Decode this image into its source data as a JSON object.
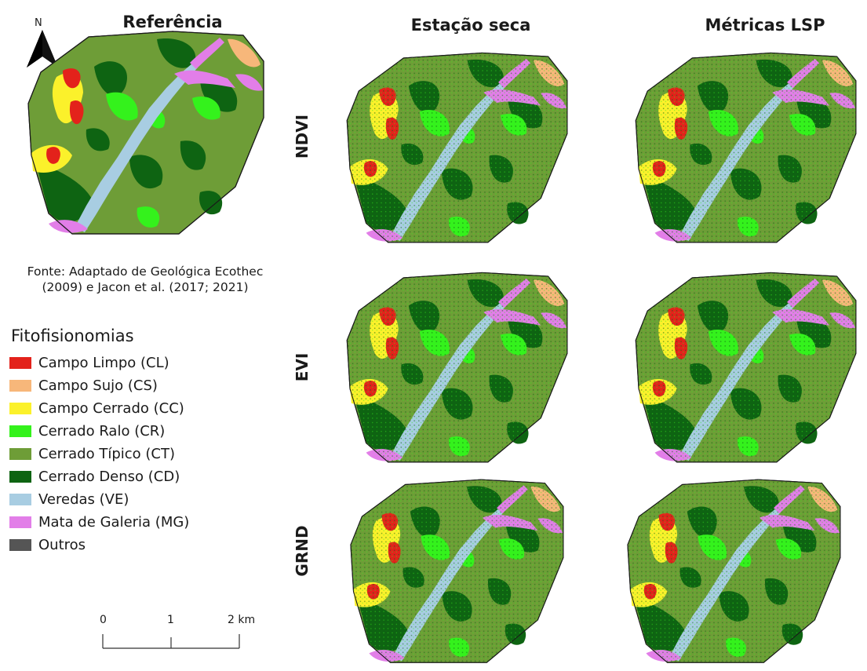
{
  "columns": {
    "referencia": "Referência",
    "estacao_seca": "Estação seca",
    "metricas_lsp": "Métricas LSP"
  },
  "rows": {
    "ndvi": "NDVI",
    "evi": "EVI",
    "grnd": "GRND"
  },
  "north_arrow": {
    "label": "N"
  },
  "source": {
    "line1": "Fonte: Adaptado de Geológica Ecothec",
    "line2": "(2009) e Jacon et al. (2017; 2021)"
  },
  "legend": {
    "title": "Fitofisionomias",
    "items": [
      {
        "label": "Campo Limpo (CL)",
        "color": "#e3221b"
      },
      {
        "label": "Campo Sujo (CS)",
        "color": "#f7b77a"
      },
      {
        "label": "Campo Cerrado (CC)",
        "color": "#fbf12b"
      },
      {
        "label": "Cerrado Ralo (CR)",
        "color": "#34f21c"
      },
      {
        "label": "Cerrado Típico (CT)",
        "color": "#6e9d37"
      },
      {
        "label": "Cerrado Denso (CD)",
        "color": "#0e6412"
      },
      {
        "label": "Veredas (VE)",
        "color": "#a8cde2"
      },
      {
        "label": "Mata de Galeria (MG)",
        "color": "#e27ee8"
      },
      {
        "label": "Outros",
        "color": "#555555"
      }
    ]
  },
  "scale_bar": {
    "labels": [
      "0",
      "1",
      "2 km"
    ]
  }
}
